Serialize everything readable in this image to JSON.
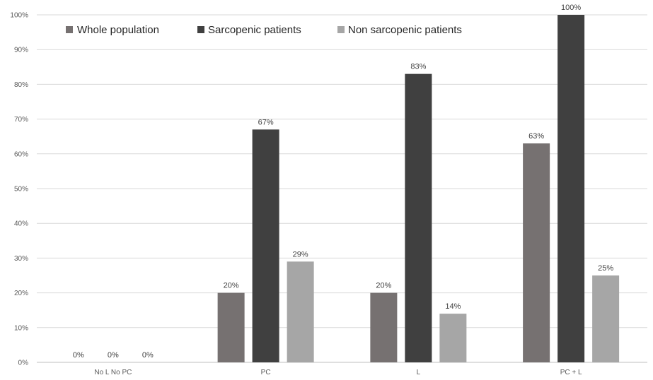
{
  "chart_data": {
    "type": "bar",
    "categories": [
      "No L No PC",
      "PC",
      "L",
      "PC + L"
    ],
    "series": [
      {
        "name": "Whole population",
        "values": [
          0,
          20,
          20,
          63
        ],
        "color": "#767171",
        "labels": [
          "0%",
          "20%",
          "20%",
          "63%"
        ]
      },
      {
        "name": "Sarcopenic patients",
        "values": [
          0,
          67,
          83,
          100
        ],
        "color": "#404040",
        "labels": [
          "0%",
          "67%",
          "83%",
          "100%"
        ]
      },
      {
        "name": "Non sarcopenic patients",
        "values": [
          0,
          29,
          14,
          25
        ],
        "color": "#a6a6a6",
        "labels": [
          "0%",
          "29%",
          "14%",
          "25%"
        ]
      }
    ],
    "y_ticks": [
      "0%",
      "10%",
      "20%",
      "30%",
      "40%",
      "50%",
      "60%",
      "70%",
      "80%",
      "90%",
      "100%"
    ],
    "ylim": [
      0,
      100
    ],
    "grid": true,
    "legend_position": "top-left",
    "title": "",
    "xlabel": "",
    "ylabel": ""
  }
}
